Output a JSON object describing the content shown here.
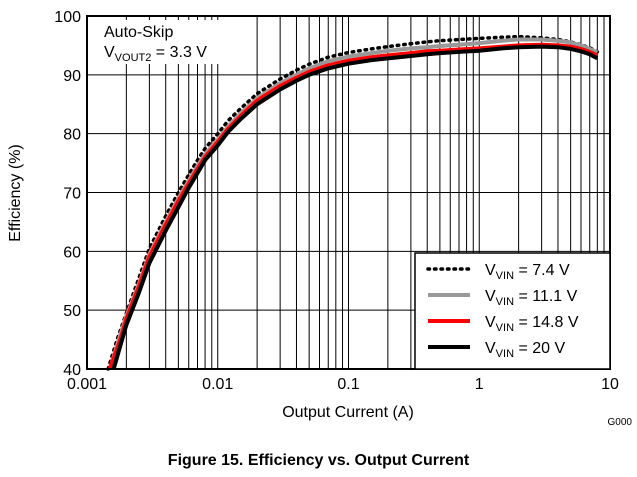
{
  "figure_code": "G000",
  "figure_caption": "Figure 15. Efficiency vs. Output Current",
  "annotation": {
    "mode": "Auto-Skip",
    "vout_prefix": "V",
    "vout_sub": "VOUT2",
    "vout_suffix": " = 3.3 V"
  },
  "chart_data": {
    "type": "line",
    "xlabel": "Output Current (A)",
    "ylabel": "Efficiency (%)",
    "xscale": "log",
    "xlim": [
      0.001,
      10
    ],
    "ylim": [
      40,
      100
    ],
    "grid": true,
    "legend_position": "bottom-right",
    "x_ticks": [
      0.001,
      0.01,
      0.1,
      1,
      10
    ],
    "x_tick_labels": [
      "0.001",
      "0.01",
      "0.1",
      "1",
      "10"
    ],
    "y_ticks": [
      40,
      50,
      60,
      70,
      80,
      90,
      100
    ],
    "y_tick_labels": [
      "40",
      "50",
      "60",
      "70",
      "80",
      "90",
      "100"
    ],
    "series": [
      {
        "name_prefix": "V",
        "name_sub": "VIN",
        "name_suffix": " = 7.4 V",
        "color": "#000000",
        "dash": "dotted",
        "x": [
          0.00145,
          0.0017,
          0.002,
          0.0025,
          0.003,
          0.004,
          0.005,
          0.006,
          0.007,
          0.008,
          0.01,
          0.012,
          0.015,
          0.02,
          0.03,
          0.04,
          0.05,
          0.07,
          0.1,
          0.15,
          0.2,
          0.3,
          0.4,
          0.5,
          0.7,
          1,
          1.5,
          2,
          3,
          4,
          5,
          6,
          7,
          8
        ],
        "y": [
          40,
          45,
          49.5,
          55.5,
          60.5,
          66,
          70,
          73,
          75.5,
          77.5,
          80,
          82.2,
          84.3,
          86.8,
          89.3,
          90.8,
          91.8,
          93,
          93.8,
          94.4,
          94.8,
          95.3,
          95.6,
          95.8,
          96,
          96.2,
          96.4,
          96.5,
          96.3,
          96,
          95.6,
          95.1,
          94.6,
          93.9
        ]
      },
      {
        "name_prefix": "V",
        "name_sub": "VIN",
        "name_suffix": " = 11.1 V",
        "color": "#999999",
        "dash": "solid",
        "x": [
          0.0015,
          0.00175,
          0.002,
          0.0025,
          0.003,
          0.004,
          0.005,
          0.006,
          0.007,
          0.008,
          0.01,
          0.012,
          0.015,
          0.02,
          0.03,
          0.04,
          0.05,
          0.07,
          0.1,
          0.15,
          0.2,
          0.3,
          0.4,
          0.5,
          0.7,
          1,
          1.5,
          2,
          3,
          4,
          5,
          6,
          7,
          8
        ],
        "y": [
          40,
          45,
          49,
          54.5,
          59.5,
          65,
          69,
          72,
          74.5,
          76.5,
          79,
          81.2,
          83.5,
          86,
          88.6,
          90,
          91.1,
          92.3,
          93.1,
          93.7,
          94.1,
          94.5,
          94.7,
          94.9,
          95.1,
          95.4,
          95.8,
          96,
          96,
          95.8,
          95.5,
          95,
          94.4,
          93.8
        ]
      },
      {
        "name_prefix": "V",
        "name_sub": "VIN",
        "name_suffix": " = 14.8 V",
        "color": "#ff0000",
        "dash": "solid",
        "x": [
          0.0015,
          0.0018,
          0.002,
          0.0025,
          0.003,
          0.004,
          0.005,
          0.006,
          0.007,
          0.008,
          0.01,
          0.012,
          0.015,
          0.02,
          0.03,
          0.04,
          0.05,
          0.07,
          0.1,
          0.15,
          0.2,
          0.3,
          0.4,
          0.5,
          0.7,
          1,
          1.5,
          2,
          3,
          4,
          5,
          6,
          7,
          8
        ],
        "y": [
          40,
          45,
          48.5,
          54,
          59,
          64.5,
          68.5,
          71.5,
          74,
          76,
          78.6,
          80.8,
          83,
          85.6,
          88.1,
          89.5,
          90.5,
          91.6,
          92.4,
          93,
          93.3,
          93.7,
          94,
          94.1,
          94.3,
          94.5,
          94.8,
          95,
          95.1,
          95,
          94.8,
          94.4,
          93.9,
          93.3
        ]
      },
      {
        "name_prefix": "V",
        "name_sub": "VIN",
        "name_suffix": " = 20 V",
        "color": "#000000",
        "dash": "solid",
        "x": [
          0.0016,
          0.0018,
          0.002,
          0.0025,
          0.003,
          0.004,
          0.005,
          0.006,
          0.007,
          0.008,
          0.01,
          0.012,
          0.015,
          0.02,
          0.03,
          0.04,
          0.05,
          0.07,
          0.1,
          0.15,
          0.2,
          0.3,
          0.4,
          0.5,
          0.7,
          1,
          1.5,
          2,
          3,
          4,
          5,
          6,
          7,
          8
        ],
        "y": [
          40,
          44,
          47.5,
          53,
          58,
          63.5,
          67.5,
          70.8,
          73.3,
          75.5,
          78,
          80.3,
          82.5,
          85,
          87.5,
          89,
          90,
          91.1,
          91.9,
          92.5,
          92.8,
          93.2,
          93.5,
          93.7,
          93.9,
          94.1,
          94.5,
          94.7,
          94.8,
          94.7,
          94.4,
          94,
          93.5,
          92.8
        ]
      }
    ]
  }
}
